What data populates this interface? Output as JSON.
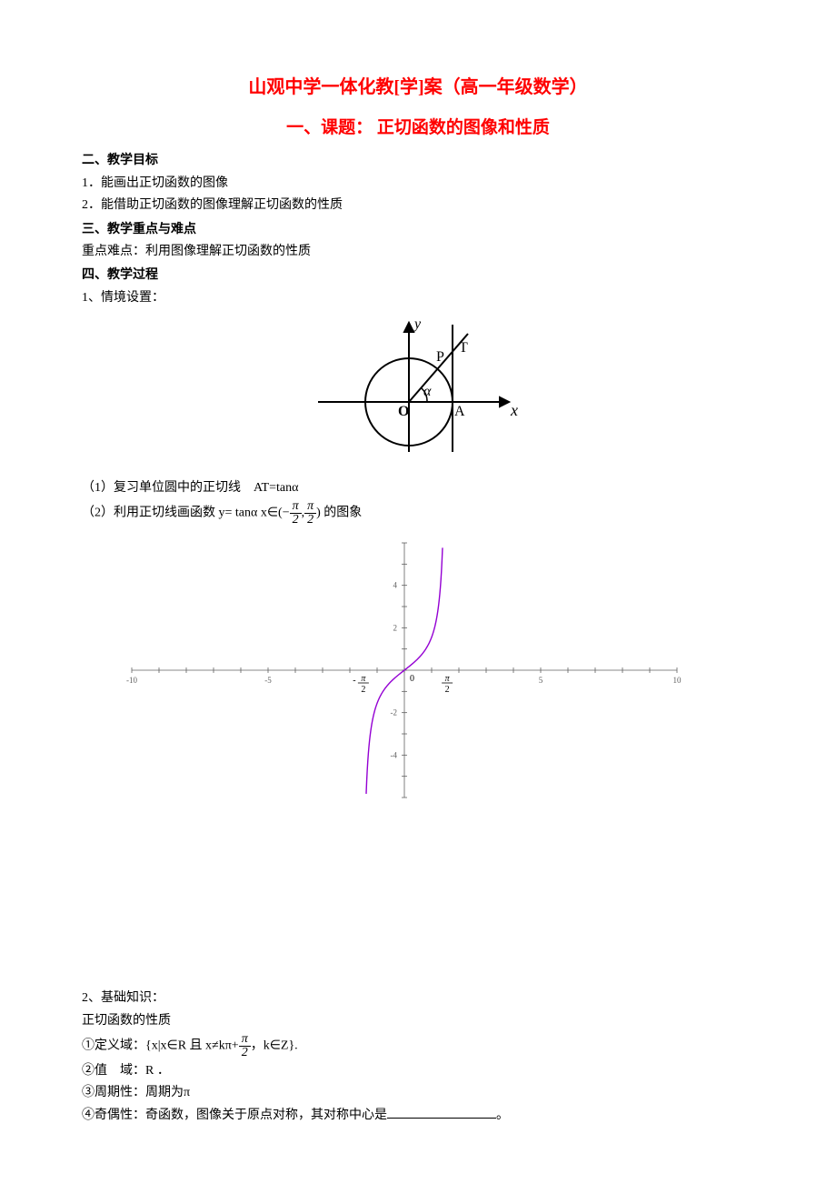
{
  "title": "山观中学一体化教[学]案（高一年级数学）",
  "subtitle": "一、课题：  正切函数的图像和性质",
  "sec2_head": "二、教学目标",
  "sec2_item1": "1．能画出正切函数的图像",
  "sec2_item2": "2．能借助正切函数的图像理解正切函数的性质",
  "sec3_head": "三、教学重点与难点",
  "sec3_item": "重点难点：利用图像理解正切函数的性质",
  "sec4_head": "四、教学过程",
  "sec4_item1": "1、情境设置：",
  "sec4_p1": "（1）复习单位圆中的正切线　AT=tanα",
  "sec4_p2_a": "（2）利用正切线画函数 y= tanα x∈(−",
  "sec4_p2_b": ",",
  "sec4_p2_c": ") 的图象",
  "sec4_item2": "2、基础知识：",
  "sec4_item2b": "正切函数的性质",
  "prop1_a": "①定义域：{x|x∈R 且 x≠kπ+",
  "prop1_b": "，k∈Z}.",
  "prop2": "②值　域：R ．",
  "prop3": "③周期性：周期为π",
  "prop4_a": "④奇偶性：奇函数，图像关于原点对称，其对称中心是",
  "prop4_b": "。",
  "fig1": {
    "labels": {
      "y": "y",
      "x": "x",
      "O": "O",
      "A": "A",
      "P": "P",
      "T": "T",
      "alpha": "α"
    },
    "colors": {
      "stroke": "#000000",
      "bg": "#ffffff"
    },
    "stroke_width": 2
  },
  "fig2": {
    "type": "line",
    "xlim": [
      -10,
      10
    ],
    "ylim": [
      -6,
      6
    ],
    "xticks": [
      -10,
      -5,
      0,
      5,
      10
    ],
    "yticks": [
      -4,
      -2,
      2,
      4
    ],
    "pi_half_labels": [
      "-π/2",
      "π/2",
      "0"
    ],
    "curve_color": "#9400d3",
    "axis_color": "#606060",
    "grid_color": "#e0e0e0",
    "tick_fontsize": 9,
    "axis_width": 0.8
  }
}
